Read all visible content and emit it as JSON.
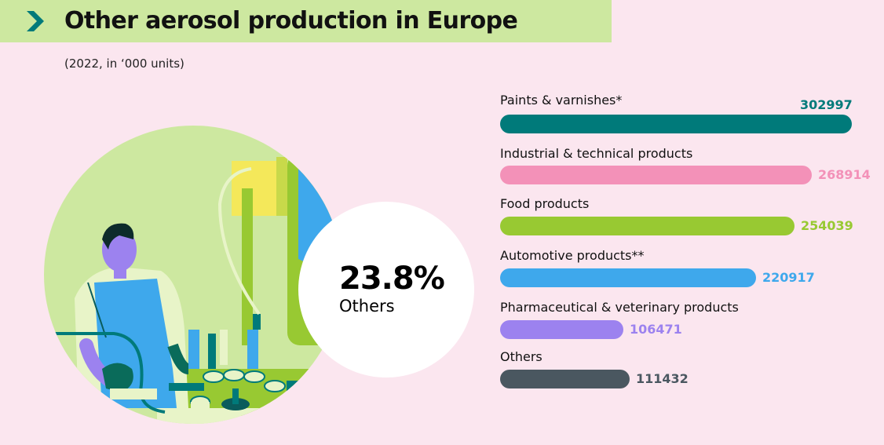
{
  "header": {
    "title": "Other aerosol production in Europe",
    "subtitle": "(2022, in ‘000 units)"
  },
  "highlight": {
    "value": "23.8%",
    "label": "Others"
  },
  "chart_data": {
    "type": "bar",
    "orientation": "horizontal",
    "categories": [
      "Paints & varnishes*",
      "Industrial & technical products",
      "Food products",
      "Automotive products**",
      "Pharmaceutical & veterinary products",
      "Others"
    ],
    "values": [
      302997,
      268914,
      254039,
      220917,
      106471,
      111432
    ],
    "value_labels": [
      "302997",
      "268914",
      "254039",
      "220917",
      "106471",
      "111432"
    ],
    "colors": [
      "#007a7a",
      "#f391b8",
      "#98c932",
      "#3ea8ec",
      "#9c82ef",
      "#4a5760"
    ],
    "title": "Other aerosol production in Europe",
    "xlabel": "",
    "ylabel": "",
    "xlim": [
      0,
      310000
    ],
    "grid": false,
    "legend": "none"
  },
  "colors": {
    "background": "#fbe6ef",
    "title_band": "#cde8a0",
    "accent": "#007a7a"
  },
  "icons": {
    "title_marker": "chevron-right-icon",
    "illustration": "factory-worker-illustration"
  }
}
